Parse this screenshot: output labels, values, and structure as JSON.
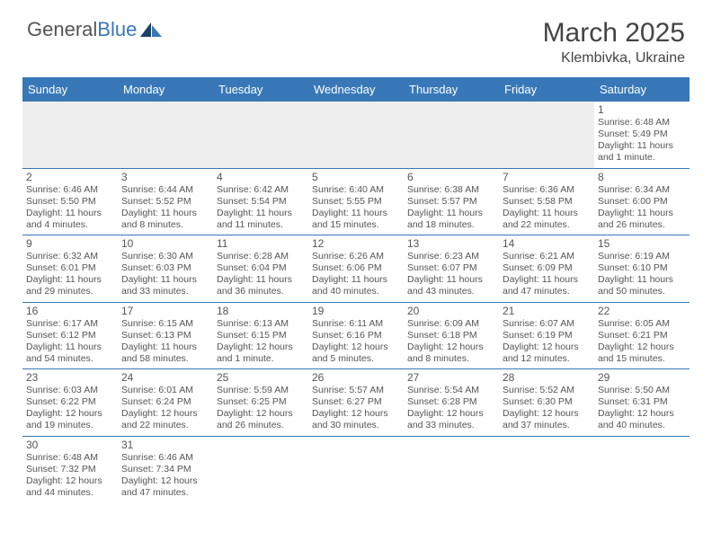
{
  "brand": {
    "part1": "General",
    "part2": "Blue"
  },
  "title": "March 2025",
  "location": "Klembivka, Ukraine",
  "header_bg": "#3878b8",
  "weekdays": [
    "Sunday",
    "Monday",
    "Tuesday",
    "Wednesday",
    "Thursday",
    "Friday",
    "Saturday"
  ],
  "weeks": [
    [
      null,
      null,
      null,
      null,
      null,
      null,
      {
        "d": "1",
        "sr": "6:48 AM",
        "ss": "5:49 PM",
        "dl": "11 hours and 1 minute."
      }
    ],
    [
      {
        "d": "2",
        "sr": "6:46 AM",
        "ss": "5:50 PM",
        "dl": "11 hours and 4 minutes."
      },
      {
        "d": "3",
        "sr": "6:44 AM",
        "ss": "5:52 PM",
        "dl": "11 hours and 8 minutes."
      },
      {
        "d": "4",
        "sr": "6:42 AM",
        "ss": "5:54 PM",
        "dl": "11 hours and 11 minutes."
      },
      {
        "d": "5",
        "sr": "6:40 AM",
        "ss": "5:55 PM",
        "dl": "11 hours and 15 minutes."
      },
      {
        "d": "6",
        "sr": "6:38 AM",
        "ss": "5:57 PM",
        "dl": "11 hours and 18 minutes."
      },
      {
        "d": "7",
        "sr": "6:36 AM",
        "ss": "5:58 PM",
        "dl": "11 hours and 22 minutes."
      },
      {
        "d": "8",
        "sr": "6:34 AM",
        "ss": "6:00 PM",
        "dl": "11 hours and 26 minutes."
      }
    ],
    [
      {
        "d": "9",
        "sr": "6:32 AM",
        "ss": "6:01 PM",
        "dl": "11 hours and 29 minutes."
      },
      {
        "d": "10",
        "sr": "6:30 AM",
        "ss": "6:03 PM",
        "dl": "11 hours and 33 minutes."
      },
      {
        "d": "11",
        "sr": "6:28 AM",
        "ss": "6:04 PM",
        "dl": "11 hours and 36 minutes."
      },
      {
        "d": "12",
        "sr": "6:26 AM",
        "ss": "6:06 PM",
        "dl": "11 hours and 40 minutes."
      },
      {
        "d": "13",
        "sr": "6:23 AM",
        "ss": "6:07 PM",
        "dl": "11 hours and 43 minutes."
      },
      {
        "d": "14",
        "sr": "6:21 AM",
        "ss": "6:09 PM",
        "dl": "11 hours and 47 minutes."
      },
      {
        "d": "15",
        "sr": "6:19 AM",
        "ss": "6:10 PM",
        "dl": "11 hours and 50 minutes."
      }
    ],
    [
      {
        "d": "16",
        "sr": "6:17 AM",
        "ss": "6:12 PM",
        "dl": "11 hours and 54 minutes."
      },
      {
        "d": "17",
        "sr": "6:15 AM",
        "ss": "6:13 PM",
        "dl": "11 hours and 58 minutes."
      },
      {
        "d": "18",
        "sr": "6:13 AM",
        "ss": "6:15 PM",
        "dl": "12 hours and 1 minute."
      },
      {
        "d": "19",
        "sr": "6:11 AM",
        "ss": "6:16 PM",
        "dl": "12 hours and 5 minutes."
      },
      {
        "d": "20",
        "sr": "6:09 AM",
        "ss": "6:18 PM",
        "dl": "12 hours and 8 minutes."
      },
      {
        "d": "21",
        "sr": "6:07 AM",
        "ss": "6:19 PM",
        "dl": "12 hours and 12 minutes."
      },
      {
        "d": "22",
        "sr": "6:05 AM",
        "ss": "6:21 PM",
        "dl": "12 hours and 15 minutes."
      }
    ],
    [
      {
        "d": "23",
        "sr": "6:03 AM",
        "ss": "6:22 PM",
        "dl": "12 hours and 19 minutes."
      },
      {
        "d": "24",
        "sr": "6:01 AM",
        "ss": "6:24 PM",
        "dl": "12 hours and 22 minutes."
      },
      {
        "d": "25",
        "sr": "5:59 AM",
        "ss": "6:25 PM",
        "dl": "12 hours and 26 minutes."
      },
      {
        "d": "26",
        "sr": "5:57 AM",
        "ss": "6:27 PM",
        "dl": "12 hours and 30 minutes."
      },
      {
        "d": "27",
        "sr": "5:54 AM",
        "ss": "6:28 PM",
        "dl": "12 hours and 33 minutes."
      },
      {
        "d": "28",
        "sr": "5:52 AM",
        "ss": "6:30 PM",
        "dl": "12 hours and 37 minutes."
      },
      {
        "d": "29",
        "sr": "5:50 AM",
        "ss": "6:31 PM",
        "dl": "12 hours and 40 minutes."
      }
    ],
    [
      {
        "d": "30",
        "sr": "6:48 AM",
        "ss": "7:32 PM",
        "dl": "12 hours and 44 minutes."
      },
      {
        "d": "31",
        "sr": "6:46 AM",
        "ss": "7:34 PM",
        "dl": "12 hours and 47 minutes."
      },
      null,
      null,
      null,
      null,
      null
    ]
  ],
  "labels": {
    "sunrise": "Sunrise:",
    "sunset": "Sunset:",
    "daylight": "Daylight:"
  }
}
